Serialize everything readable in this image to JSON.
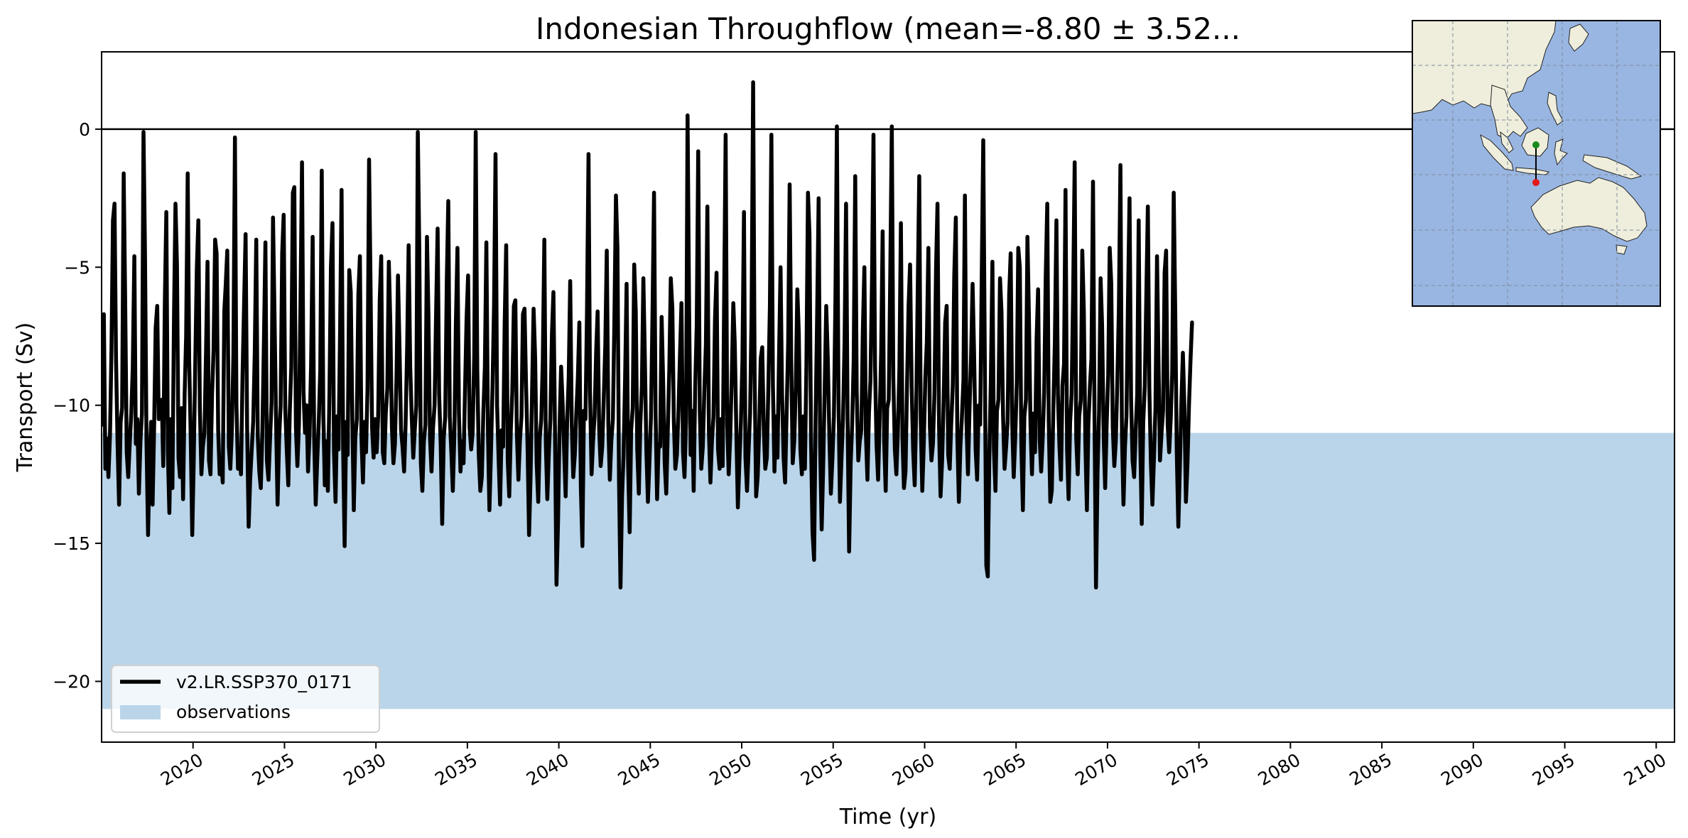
{
  "chart_data": {
    "type": "line",
    "title": "Indonesian Throughflow (mean=-8.80 ± 3.52...",
    "xlabel": "Time (yr)",
    "ylabel": "Transport (Sv)",
    "xlim": [
      2015,
      2101
    ],
    "ylim": [
      -22.2,
      2.8
    ],
    "xticks": [
      2020,
      2025,
      2030,
      2035,
      2040,
      2045,
      2050,
      2055,
      2060,
      2065,
      2070,
      2075,
      2080,
      2085,
      2090,
      2095,
      2100
    ],
    "yticks": [
      0,
      -5,
      -10,
      -15,
      -20
    ],
    "ytick_labels": [
      "0",
      "−5",
      "−10",
      "−15",
      "−20"
    ],
    "zero_line": 0,
    "observations_band": [
      -21.0,
      -11.0
    ],
    "grid": false,
    "legend_position": "lower-left",
    "legend": [
      {
        "label": "v2.LR.SSP370_0171",
        "kind": "line"
      },
      {
        "label": "observations",
        "kind": "band"
      }
    ],
    "colors": {
      "series": "#000000",
      "observations": "#bad5e9",
      "map_ocean": "#99b6e2",
      "map_land": "#efeedc"
    },
    "series": [
      {
        "name": "v2.LR.SSP370_0171",
        "x_start": 2015.04,
        "x_step": 0.08333,
        "values": [
          -10.7,
          -6.7,
          -12.3,
          -11.2,
          -12.6,
          -11.1,
          -8.0,
          -3.3,
          -2.7,
          -8.3,
          -11.4,
          -13.6,
          -10.6,
          -10.1,
          -1.6,
          -6.2,
          -11.7,
          -12.6,
          -11.4,
          -10.3,
          -8.6,
          -4.6,
          -11.4,
          -10.5,
          -13.2,
          -11.3,
          -10.3,
          -0.1,
          -4.5,
          -11.3,
          -14.7,
          -12.0,
          -10.6,
          -13.6,
          -10.7,
          -7.2,
          -6.4,
          -10.5,
          -10.2,
          -9.8,
          -12.2,
          -6.3,
          -3.0,
          -11.7,
          -13.9,
          -10.5,
          -13.0,
          -6.8,
          -2.7,
          -4.9,
          -11.9,
          -12.6,
          -10.1,
          -13.4,
          -9.6,
          -7.5,
          -1.6,
          -8.4,
          -11.2,
          -14.7,
          -12.0,
          -8.4,
          -5.1,
          -3.3,
          -10.1,
          -12.5,
          -11.5,
          -11.0,
          -8.2,
          -4.8,
          -12.0,
          -12.5,
          -9.6,
          -8.0,
          -4.0,
          -4.5,
          -10.9,
          -12.5,
          -11.9,
          -12.8,
          -6.6,
          -5.6,
          -4.4,
          -11.5,
          -12.3,
          -10.9,
          -8.2,
          -0.3,
          -10.0,
          -12.3,
          -11.6,
          -12.5,
          -8.9,
          -6.4,
          -3.8,
          -10.7,
          -14.4,
          -12.7,
          -11.6,
          -10.6,
          -8.1,
          -4.0,
          -11.1,
          -12.4,
          -13.0,
          -11.0,
          -7.8,
          -4.1,
          -12.0,
          -12.7,
          -11.3,
          -9.9,
          -3.2,
          -6.7,
          -10.6,
          -13.6,
          -11.2,
          -10.0,
          -4.5,
          -3.1,
          -10.1,
          -11.6,
          -12.9,
          -10.2,
          -8.6,
          -2.3,
          -2.1,
          -10.8,
          -12.2,
          -10.7,
          -6.4,
          -1.2,
          -9.5,
          -11.0,
          -10.0,
          -12.4,
          -11.0,
          -8.5,
          -3.9,
          -11.2,
          -13.6,
          -12.0,
          -10.6,
          -8.7,
          -1.5,
          -10.3,
          -12.9,
          -11.3,
          -13.1,
          -9.6,
          -5.0,
          -3.4,
          -11.7,
          -13.5,
          -10.4,
          -11.6,
          -7.3,
          -2.2,
          -11.6,
          -15.1,
          -10.6,
          -11.8,
          -5.1,
          -5.9,
          -10.4,
          -13.8,
          -11.2,
          -10.5,
          -6.0,
          -4.6,
          -11.1,
          -12.8,
          -10.6,
          -11.7,
          -9.4,
          -1.1,
          -5.7,
          -10.8,
          -11.9,
          -10.5,
          -11.7,
          -10.4,
          -6.2,
          -4.6,
          -11.7,
          -12.1,
          -10.3,
          -9.4,
          -4.8,
          -7.1,
          -10.8,
          -12.1,
          -11.4,
          -9.0,
          -5.3,
          -8.0,
          -10.9,
          -11.5,
          -12.4,
          -10.7,
          -7.9,
          -4.2,
          -8.6,
          -10.4,
          -11.9,
          -10.9,
          -10.0,
          -0.1,
          -4.4,
          -12.1,
          -13.1,
          -11.3,
          -10.7,
          -3.9,
          -6.8,
          -11.2,
          -12.4,
          -10.8,
          -10.0,
          -6.7,
          -3.6,
          -9.6,
          -11.4,
          -14.3,
          -11.2,
          -10.4,
          -5.5,
          -2.6,
          -10.4,
          -11.7,
          -13.1,
          -11.0,
          -7.0,
          -4.3,
          -10.3,
          -12.4,
          -11.3,
          -12.1,
          -9.4,
          -6.9,
          -5.3,
          -10.8,
          -11.6,
          -11.0,
          -8.2,
          -0.1,
          -8.7,
          -11.8,
          -13.1,
          -12.6,
          -10.3,
          -8.6,
          -4.1,
          -10.9,
          -13.8,
          -11.7,
          -9.4,
          -6.4,
          -0.9,
          -10.0,
          -11.9,
          -13.6,
          -10.9,
          -11.5,
          -7.0,
          -4.2,
          -12.0,
          -13.3,
          -10.9,
          -9.5,
          -6.4,
          -6.2,
          -11.0,
          -12.7,
          -11.3,
          -10.4,
          -6.7,
          -6.5,
          -9.2,
          -11.5,
          -14.7,
          -12.6,
          -9.4,
          -6.5,
          -8.3,
          -12.1,
          -13.5,
          -11.2,
          -10.5,
          -8.4,
          -4.0,
          -11.4,
          -13.4,
          -11.7,
          -10.5,
          -7.4,
          -5.9,
          -11.0,
          -16.5,
          -14.2,
          -10.8,
          -8.6,
          -9.9,
          -11.6,
          -13.3,
          -10.6,
          -9.0,
          -5.5,
          -10.7,
          -12.6,
          -11.8,
          -10.3,
          -9.0,
          -7.0,
          -13.0,
          -15.1,
          -10.2,
          -10.5,
          -6.7,
          -0.9,
          -9.5,
          -12.5,
          -11.3,
          -10.4,
          -8.1,
          -6.6,
          -10.9,
          -12.2,
          -11.5,
          -9.8,
          -7.8,
          -4.4,
          -10.7,
          -12.7,
          -11.3,
          -10.5,
          -6.9,
          -2.4,
          -4.3,
          -12.7,
          -16.6,
          -13.3,
          -11.8,
          -9.0,
          -5.6,
          -12.1,
          -14.6,
          -10.9,
          -10.1,
          -4.9,
          -6.6,
          -11.6,
          -13.2,
          -10.7,
          -9.3,
          -5.4,
          -8.3,
          -11.7,
          -13.5,
          -12.0,
          -10.4,
          -6.6,
          -2.3,
          -10.3,
          -13.4,
          -11.4,
          -11.5,
          -6.8,
          -9.2,
          -12.1,
          -13.2,
          -11.0,
          -8.7,
          -5.4,
          -6.5,
          -10.6,
          -12.3,
          -11.8,
          -10.3,
          -8.2,
          -6.3,
          -11.7,
          -12.6,
          -10.6,
          0.5,
          -6.6,
          -11.8,
          -10.2,
          -13.1,
          -9.4,
          -7.1,
          -0.8,
          -10.2,
          -12.3,
          -11.5,
          -9.5,
          -7.8,
          -2.8,
          -10.9,
          -12.8,
          -11.3,
          -10.4,
          -6.9,
          -5.2,
          -11.6,
          -12.3,
          -10.5,
          -12.2,
          -6.1,
          -0.2,
          -10.7,
          -12.5,
          -11.1,
          -9.0,
          -6.3,
          -7.8,
          -11.0,
          -13.7,
          -12.1,
          -10.6,
          -8.4,
          -3.0,
          -11.9,
          -13.1,
          -11.7,
          -10.3,
          -6.7,
          1.7,
          -8.9,
          -13.3,
          -12.6,
          -10.9,
          -8.3,
          -7.9,
          -10.9,
          -12.3,
          -11.9,
          -9.4,
          -6.4,
          -0.2,
          -9.2,
          -12.4,
          -10.4,
          -11.9,
          -8.3,
          -5.0,
          -9.6,
          -11.9,
          -12.8,
          -10.2,
          -7.8,
          -2.0,
          -8.3,
          -12.1,
          -11.3,
          -9.4,
          -5.8,
          -7.4,
          -11.6,
          -12.5,
          -10.4,
          -12.3,
          -8.5,
          -2.3,
          -3.8,
          -11.3,
          -14.6,
          -15.6,
          -10.5,
          -6.7,
          -2.5,
          -11.5,
          -14.5,
          -12.2,
          -9.3,
          -6.4,
          -8.3,
          -11.0,
          -13.2,
          -12.0,
          -10.4,
          -6.2,
          0.1,
          -9.6,
          -13.5,
          -11.9,
          -10.5,
          -7.7,
          -2.7,
          -10.6,
          -15.3,
          -12.1,
          -10.7,
          -8.4,
          -1.7,
          -9.5,
          -12.0,
          -11.3,
          -10.9,
          -7.3,
          -5.0,
          -11.0,
          -12.7,
          -10.3,
          -9.1,
          -5.5,
          -0.2,
          -8.6,
          -11.4,
          -12.7,
          -10.6,
          -8.1,
          -3.7,
          -11.3,
          -13.1,
          -10.1,
          -9.8,
          -5.3,
          0.1,
          -9.0,
          -11.6,
          -12.5,
          -10.9,
          -8.6,
          -3.4,
          -11.2,
          -13.0,
          -12.4,
          -9.3,
          -6.4,
          -4.9,
          -9.3,
          -11.6,
          -12.9,
          -10.2,
          -6.0,
          -1.7,
          -10.6,
          -13.1,
          -11.4,
          -9.0,
          -7.7,
          -4.3,
          -10.8,
          -12.0,
          -11.4,
          -9.6,
          -5.1,
          -2.7,
          -10.8,
          -13.3,
          -12.0,
          -9.9,
          -7.0,
          -6.4,
          -11.8,
          -12.3,
          -10.7,
          -9.3,
          -5.3,
          -3.2,
          -11.1,
          -13.5,
          -11.5,
          -10.4,
          -9.1,
          -2.4,
          -10.6,
          -12.5,
          -10.1,
          -8.3,
          -5.6,
          -8.1,
          -11.6,
          -12.7,
          -10.0,
          -10.7,
          -5.5,
          -0.4,
          -7.9,
          -15.8,
          -16.2,
          -11.8,
          -9.1,
          -4.8,
          -11.6,
          -13.1,
          -10.2,
          -9.8,
          -5.4,
          -6.6,
          -10.4,
          -12.3,
          -11.5,
          -10.6,
          -6.0,
          -4.5,
          -10.7,
          -12.6,
          -11.2,
          -9.2,
          -4.3,
          -5.0,
          -11.4,
          -13.8,
          -10.4,
          -9.8,
          -3.9,
          -6.8,
          -10.7,
          -12.5,
          -10.3,
          -11.7,
          -7.6,
          -5.8,
          -11.2,
          -12.4,
          -11.2,
          -9.5,
          -5.4,
          -2.7,
          -10.6,
          -13.5,
          -13.1,
          -10.1,
          -7.7,
          -3.3,
          -9.6,
          -11.5,
          -12.7,
          -9.3,
          -8.5,
          -2.2,
          -11.6,
          -13.4,
          -10.6,
          -9.6,
          -5.8,
          -1.2,
          -11.2,
          -12.5,
          -10.4,
          -9.8,
          -4.4,
          -6.6,
          -11.3,
          -13.8,
          -10.7,
          -9.3,
          -8.3,
          -1.9,
          -10.4,
          -16.6,
          -12.4,
          -10.3,
          -5.4,
          -7.1,
          -11.1,
          -13.0,
          -10.6,
          -8.9,
          -4.3,
          -5.6,
          -10.8,
          -12.2,
          -11.3,
          -9.1,
          -6.5,
          -1.3,
          -11.0,
          -13.6,
          -11.5,
          -10.4,
          -6.1,
          -2.5,
          -9.8,
          -12.0,
          -12.6,
          -11.0,
          -9.6,
          -3.3,
          -11.3,
          -14.3,
          -10.6,
          -9.3,
          -6.1,
          -2.8,
          -9.4,
          -12.1,
          -13.6,
          -11.9,
          -10.1,
          -4.6,
          -8.4,
          -12.0,
          -11.0,
          -10.2,
          -5.2,
          -4.4,
          -10.7,
          -11.7,
          -10.5,
          -8.8,
          -2.3,
          -6.7,
          -11.7,
          -14.4,
          -12.3,
          -9.9,
          -8.1,
          -10.1,
          -13.5,
          -12.1,
          -10.0,
          -8.4,
          -7.0
        ]
      }
    ]
  },
  "inset_map": {
    "description_icons": [
      "green-start-point",
      "red-end-point"
    ],
    "colors": {
      "ocean": "#99b6e2",
      "land": "#efeedc",
      "start": "#1a8a1a",
      "end": "#e31a1a"
    }
  }
}
